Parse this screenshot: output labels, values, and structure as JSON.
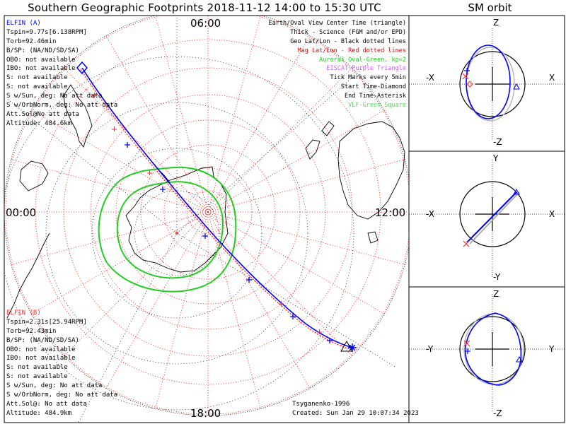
{
  "header": {
    "title": "Southern Geographic Footprints 2018-11-12 14:00 to 15:30 UTC",
    "sm_title": "SM orbit"
  },
  "colors": {
    "elfin_a": "#0000ff",
    "elfin_b": "#ff2a2a",
    "grid_red": "#ff0000",
    "oval_green": "#22cc22",
    "plot_border": "#000000"
  },
  "elfin_a": {
    "name": "ELFIN (A)",
    "lines": [
      "Tspin=9.77s[6.138RPM]",
      "Torb=92.46min",
      "B/SP: (NA/ND/SD/SA)",
      "OBO: not available",
      "IBO: not available",
      "S: not available",
      "S: not available",
      "S w/Sun, deg: No att data",
      "S w/OrbNorm, deg: No att data",
      "Att.Sol@No att data",
      "Altitude: 484.6km"
    ]
  },
  "elfin_b": {
    "name": "ELFIN (B)",
    "lines": [
      "Tspin=2.31s[25.94RPM]",
      "Torb=92.43min",
      "B/SP: (NA/ND/SD/SA)",
      "OBO: not available",
      "IBO: not available",
      "S: not available",
      "S: not available",
      "S w/Sun, deg: No att data",
      "S w/OrbNorm, deg: No att data",
      "Att.Sol@: No att data",
      "Altitude: 484.9km"
    ]
  },
  "legend": [
    {
      "text": "Earth/Oval View Center Time (triangle)",
      "color": "#000000"
    },
    {
      "text": "Thick - Science (FGM and/or EPD)",
      "color": "#000000"
    },
    {
      "text": "Geo Lat/Lon - Black dotted lines",
      "color": "#000000"
    },
    {
      "text": "Mag Lat/Lon - Red dotted lines",
      "color": "#ff0000"
    },
    {
      "text": "Auroral Oval-Green, kp=2",
      "color": "#22cc22"
    },
    {
      "text": "EISCAT-Purple Triangle",
      "color": "#cc66ff"
    },
    {
      "text": "Tick Marks every 5min",
      "color": "#000000"
    },
    {
      "text": "Start Time-Diamond",
      "color": "#000000"
    },
    {
      "text": "End Time-Asterisk",
      "color": "#000000"
    },
    {
      "text": "VLF-Green Square",
      "color": "#66cc66"
    }
  ],
  "footer": {
    "credit": "Tsyganenko-1996",
    "created": "Created: Sun Jan 29 10:07:34 2023"
  },
  "hour_labels": {
    "top": "06:00",
    "left": "00:00",
    "right": "12:00",
    "bottom": "18:00"
  },
  "sm_panels": [
    {
      "name": "xz",
      "top": "Z",
      "bottom": "-Z",
      "left": "-X",
      "right": "X"
    },
    {
      "name": "xy",
      "top": "Y",
      "bottom": "-Y",
      "left": "-X",
      "right": "X"
    },
    {
      "name": "yz",
      "top": "Z",
      "bottom": "-Z",
      "left": "-Y",
      "right": "Y"
    }
  ]
}
